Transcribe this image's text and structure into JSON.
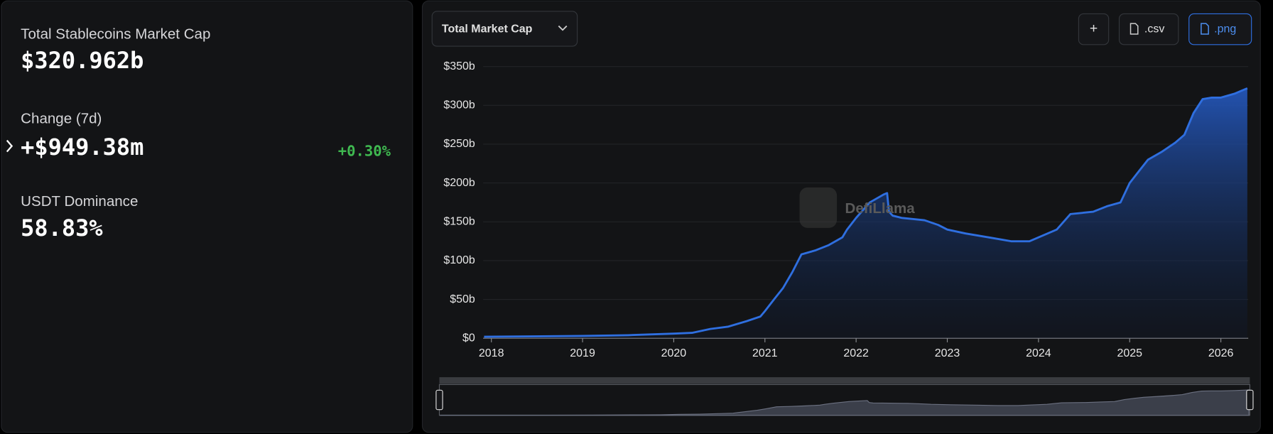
{
  "stats": {
    "market_cap_label": "Total Stablecoins Market Cap",
    "market_cap_value": "$320.962b",
    "change_label": "Change (7d)",
    "change_value": "+$949.38m",
    "change_percent": "+0.30%",
    "dominance_label": "USDT Dominance",
    "dominance_value": "58.83%"
  },
  "toolbar": {
    "dropdown": "Total Market Cap",
    "csv": ".csv",
    "png": ".png",
    "add": "+"
  },
  "watermark": "DefiLlama",
  "chart_data": {
    "type": "area",
    "color": "#2f6fe0",
    "x": [
      2017.92,
      2019.0,
      2019.5,
      2020.0,
      2020.2,
      2020.4,
      2020.6,
      2020.8,
      2020.95,
      2021.0,
      2021.1,
      2021.2,
      2021.3,
      2021.4,
      2021.55,
      2021.7,
      2021.85,
      2021.9,
      2022.0,
      2022.15,
      2022.3,
      2022.34,
      2022.36,
      2022.4,
      2022.5,
      2022.75,
      2022.9,
      2023.0,
      2023.2,
      2023.5,
      2023.7,
      2023.9,
      2024.0,
      2024.2,
      2024.35,
      2024.6,
      2024.75,
      2024.9,
      2025.0,
      2025.1,
      2025.2,
      2025.35,
      2025.5,
      2025.6,
      2025.7,
      2025.8,
      2025.9,
      2026.0,
      2026.15,
      2026.29
    ],
    "values": [
      2,
      3,
      4,
      6,
      7,
      12,
      15,
      22,
      28,
      35,
      50,
      65,
      85,
      108,
      113,
      120,
      130,
      140,
      155,
      175,
      185,
      187,
      163,
      158,
      155,
      152,
      146,
      140,
      135,
      129,
      125,
      125,
      130,
      140,
      160,
      163,
      170,
      175,
      200,
      215,
      230,
      240,
      252,
      262,
      290,
      308,
      310,
      310,
      315,
      322
    ],
    "xlim": [
      2017.91,
      2026.3
    ],
    "xticks": [
      2018,
      2019,
      2020,
      2021,
      2022,
      2023,
      2024,
      2025,
      2026
    ],
    "ylim": [
      0,
      350
    ],
    "yticks": [
      {
        "value": 0,
        "label": "$0"
      },
      {
        "value": 50,
        "label": "$50b"
      },
      {
        "value": 100,
        "label": "$100b"
      },
      {
        "value": 150,
        "label": "$150b"
      },
      {
        "value": 200,
        "label": "$200b"
      },
      {
        "value": 250,
        "label": "$250b"
      },
      {
        "value": 300,
        "label": "$300b"
      },
      {
        "value": 350,
        "label": "$350b"
      }
    ],
    "grid": true
  }
}
